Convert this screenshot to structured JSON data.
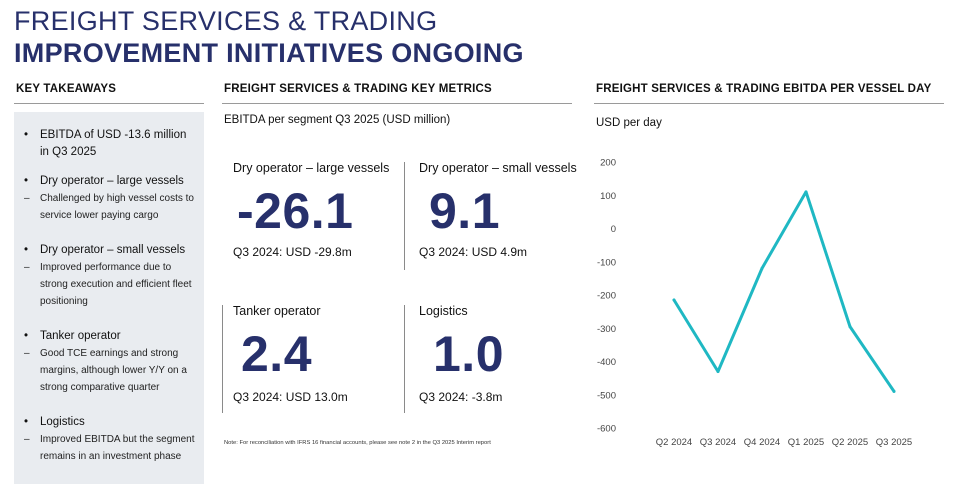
{
  "header": {
    "title_line1": "FREIGHT SERVICES & TRADING",
    "title_line2": "IMPROVEMENT INITIATIVES ONGOING"
  },
  "takeaways": {
    "heading": "KEY TAKEAWAYS",
    "bullet_marker": "•",
    "dash_marker": "–",
    "items": [
      {
        "text": "EBITDA of USD -13.6 million in Q3 2025",
        "subs": []
      },
      {
        "text": "Dry operator – large vessels",
        "subs": [
          "Challenged by high vessel costs to service lower paying cargo"
        ]
      },
      {
        "text": "Dry operator – small vessels",
        "subs": [
          "Improved performance due to strong execution and efficient fleet positioning"
        ]
      },
      {
        "text": "Tanker operator",
        "subs": [
          "Good TCE earnings and strong margins, although lower Y/Y on a strong comparative quarter"
        ]
      },
      {
        "text": "Logistics",
        "subs": [
          "Improved EBITDA but the segment remains in an investment phase"
        ]
      }
    ]
  },
  "metrics": {
    "heading": "FREIGHT SERVICES & TRADING KEY METRICS",
    "subtitle": "EBITDA per segment Q3 2025 (USD million)",
    "items": [
      {
        "label": "Dry operator – large vessels",
        "value": "-26.1",
        "prev": "Q3 2024: USD -29.8m"
      },
      {
        "label": "Dry operator – small vessels",
        "value": "9.1",
        "prev": "Q3 2024:  USD 4.9m"
      },
      {
        "label": "Tanker operator",
        "value": "2.4",
        "prev": "Q3 2024: USD 13.0m"
      },
      {
        "label": "Logistics",
        "value": "1.0",
        "prev": "Q3 2024: -3.8m"
      }
    ],
    "footnote": "Note: For reconciliation with IFRS 16 financial accounts, please see note 2 in the Q3 2025 Interim report"
  },
  "chart_data": {
    "type": "line",
    "title": "FREIGHT SERVICES & TRADING EBITDA PER VESSEL DAY",
    "ylabel": "USD per day",
    "xlabel": "",
    "categories": [
      "Q2 2024",
      "Q3 2024",
      "Q4 2024",
      "Q1 2025",
      "Q2 2025",
      "Q3 2025"
    ],
    "series": [
      {
        "name": "EBITDA per vessel day",
        "values": [
          -215,
          -430,
          -120,
          110,
          -295,
          -490
        ],
        "color": "#1fb8c3"
      }
    ],
    "ylim": [
      -600,
      200
    ],
    "yticks": [
      200,
      100,
      0,
      -100,
      -200,
      -300,
      -400,
      -500,
      -600
    ],
    "grid": false
  },
  "colors": {
    "navy": "#27306b",
    "teal": "#1fb8c3",
    "panel": "#e9ecf0"
  }
}
